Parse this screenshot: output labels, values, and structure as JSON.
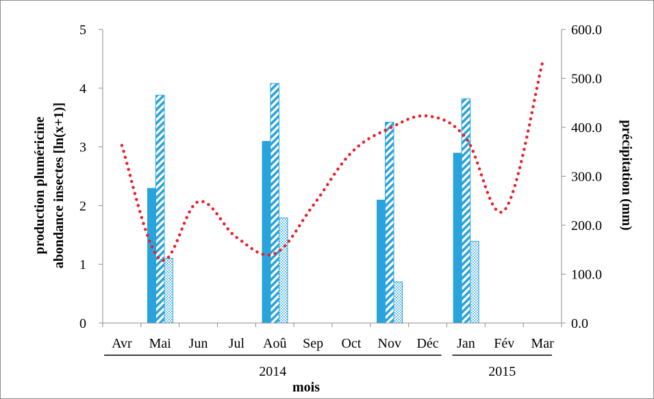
{
  "chart_data": {
    "type": "bar",
    "title": "",
    "xlabel": "mois",
    "ylabel_left": [
      "production pluméricine",
      "abondance insectes [ln(x+1)]"
    ],
    "ylabel_right": "précipitation (mm)",
    "categories": [
      "Avr",
      "Mai",
      "Jun",
      "Jul",
      "Aoû",
      "Sep",
      "Oct",
      "Nov",
      "Déc",
      "Jan",
      "Fév",
      "Mar"
    ],
    "year_groups": [
      {
        "label": "2014",
        "from": 0,
        "to": 8
      },
      {
        "label": "2015",
        "from": 9,
        "to": 11
      }
    ],
    "ylim_left": [
      0,
      5
    ],
    "yticks_left": [
      "0",
      "1",
      "2",
      "3",
      "4",
      "5"
    ],
    "ylim_right": [
      0,
      600
    ],
    "yticks_right": [
      "0.0",
      "100.0",
      "200.0",
      "300.0",
      "400.0",
      "500.0",
      "600.0"
    ],
    "series": [
      {
        "style": "solid",
        "color": "#29a3dc",
        "axis": "left",
        "values": [
          null,
          2.3,
          null,
          null,
          3.1,
          null,
          null,
          2.1,
          null,
          2.9,
          null,
          null
        ]
      },
      {
        "style": "hatched",
        "color": "#29a3dc",
        "axis": "left",
        "values": [
          null,
          3.88,
          null,
          null,
          4.08,
          null,
          null,
          3.42,
          null,
          3.82,
          null,
          null
        ]
      },
      {
        "style": "dotted",
        "color": "#29a3dc",
        "axis": "left",
        "values": [
          null,
          1.1,
          null,
          null,
          1.79,
          null,
          null,
          0.7,
          null,
          1.39,
          null,
          null
        ]
      },
      {
        "type": "line",
        "style": "dotted",
        "color": "#e8202a",
        "axis": "right",
        "values": [
          363,
          130,
          248,
          175,
          142,
          240,
          348,
          398,
          423,
          378,
          230,
          532
        ]
      }
    ],
    "grid": false,
    "legend": "none"
  }
}
